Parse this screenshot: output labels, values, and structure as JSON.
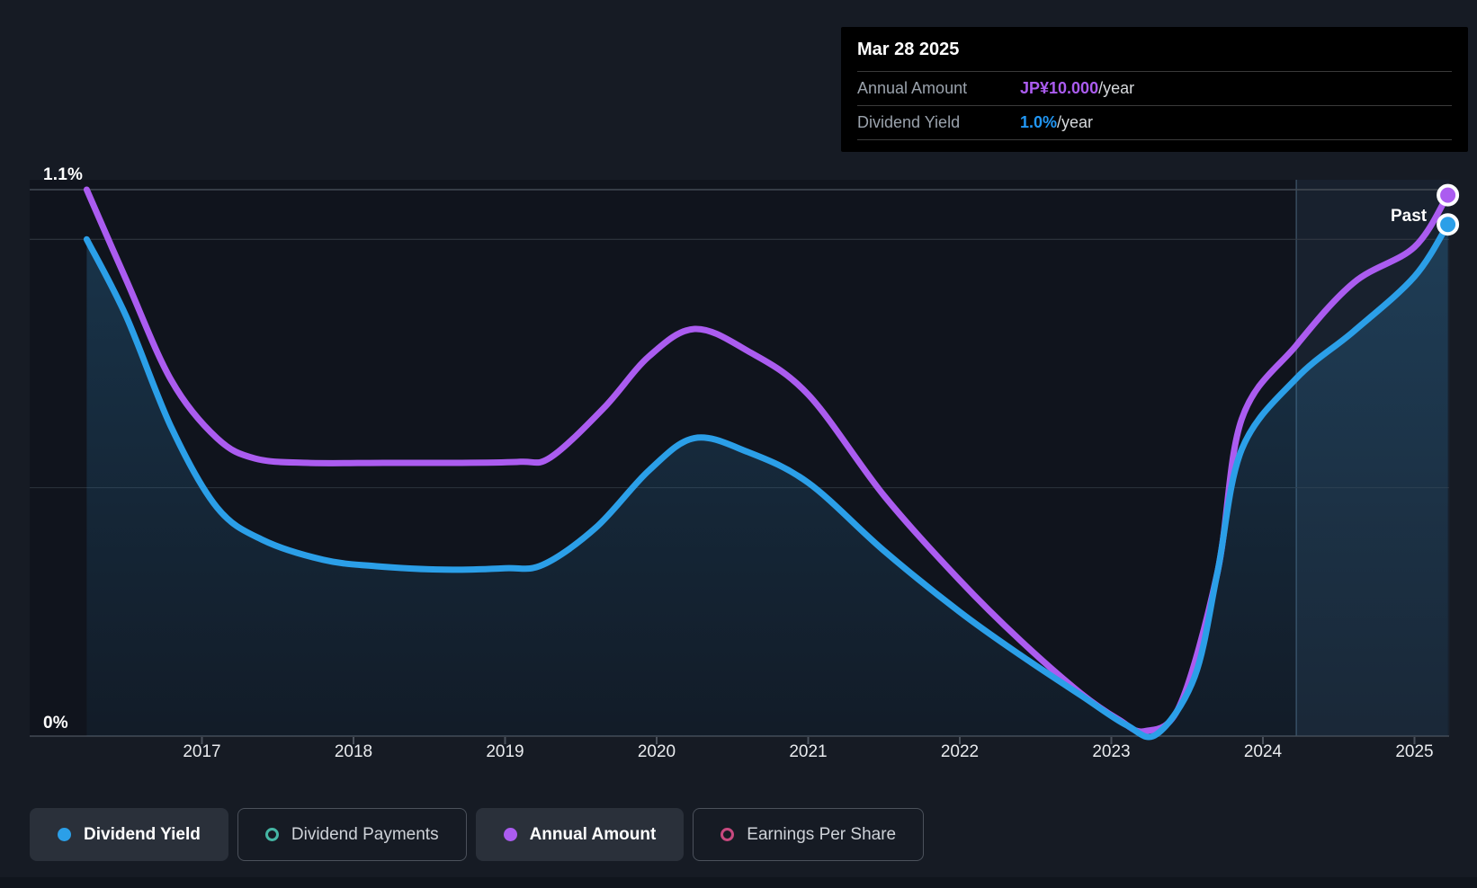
{
  "tooltip": {
    "date": "Mar 28 2025",
    "rows": [
      {
        "label": "Annual Amount",
        "value": "JP¥10.000",
        "suffix": "/year",
        "color": "#ab5cf0"
      },
      {
        "label": "Dividend Yield",
        "value": "1.0%",
        "suffix": "/year",
        "color": "#2196f3"
      }
    ]
  },
  "chart_data": {
    "type": "line",
    "x_tick_labels": [
      "2017",
      "2018",
      "2019",
      "2020",
      "2021",
      "2022",
      "2023",
      "2024",
      "2025"
    ],
    "y_axis_labels": {
      "top": "1.1%",
      "bottom": "0%"
    },
    "past_label": "Past",
    "x_range_years": [
      2016.24,
      2025.23
    ],
    "y_gridline_values_pct": [
      1.1,
      1.0,
      0.5,
      0
    ],
    "highlight_region_years": [
      2024.22,
      2025.23
    ],
    "grid_on": true,
    "legend_position": "bottom-left",
    "series": [
      {
        "name": "Dividend Yield",
        "unit": "%",
        "axis_max": 1.1,
        "color": "#2b9fe8",
        "area_fill": true,
        "end_marker": true,
        "points": [
          [
            2016.24,
            1.0
          ],
          [
            2016.5,
            0.845
          ],
          [
            2016.8,
            0.62
          ],
          [
            2017.1,
            0.46
          ],
          [
            2017.4,
            0.395
          ],
          [
            2017.8,
            0.355
          ],
          [
            2018.15,
            0.342
          ],
          [
            2018.6,
            0.335
          ],
          [
            2019.0,
            0.338
          ],
          [
            2019.25,
            0.345
          ],
          [
            2019.6,
            0.42
          ],
          [
            2019.95,
            0.535
          ],
          [
            2020.25,
            0.6
          ],
          [
            2020.6,
            0.572
          ],
          [
            2021.0,
            0.51
          ],
          [
            2021.5,
            0.373
          ],
          [
            2022.0,
            0.25
          ],
          [
            2022.4,
            0.163
          ],
          [
            2022.8,
            0.082
          ],
          [
            2023.1,
            0.022
          ],
          [
            2023.3,
            0.004
          ],
          [
            2023.55,
            0.12
          ],
          [
            2023.7,
            0.33
          ],
          [
            2023.86,
            0.577
          ],
          [
            2024.22,
            0.72
          ],
          [
            2024.6,
            0.815
          ],
          [
            2025.0,
            0.925
          ],
          [
            2025.22,
            1.03
          ]
        ]
      },
      {
        "name": "Annual Amount",
        "unit": "JP¥/year",
        "axis_max": 10,
        "color": "#ab5cf0",
        "area_fill": false,
        "end_marker": true,
        "points": [
          [
            2016.24,
            10.0
          ],
          [
            2016.5,
            8.35
          ],
          [
            2016.8,
            6.5
          ],
          [
            2017.1,
            5.45
          ],
          [
            2017.35,
            5.08
          ],
          [
            2017.7,
            5.0
          ],
          [
            2018.2,
            5.0
          ],
          [
            2018.7,
            5.0
          ],
          [
            2019.1,
            5.02
          ],
          [
            2019.3,
            5.1
          ],
          [
            2019.65,
            6.0
          ],
          [
            2019.95,
            6.95
          ],
          [
            2020.25,
            7.45
          ],
          [
            2020.6,
            7.05
          ],
          [
            2021.0,
            6.25
          ],
          [
            2021.5,
            4.4
          ],
          [
            2022.0,
            2.85
          ],
          [
            2022.4,
            1.75
          ],
          [
            2022.8,
            0.78
          ],
          [
            2023.05,
            0.3
          ],
          [
            2023.22,
            0.09
          ],
          [
            2023.45,
            0.55
          ],
          [
            2023.7,
            3.0
          ],
          [
            2023.86,
            5.8
          ],
          [
            2024.22,
            7.15
          ],
          [
            2024.6,
            8.3
          ],
          [
            2025.0,
            8.95
          ],
          [
            2025.22,
            9.9
          ]
        ]
      }
    ]
  },
  "legend": [
    {
      "label": "Dividend Yield",
      "color": "#2b9fe8",
      "active": true,
      "marker": "filled"
    },
    {
      "label": "Dividend Payments",
      "color": "#45b6a4",
      "active": false,
      "marker": "ring"
    },
    {
      "label": "Annual Amount",
      "color": "#ab5cf0",
      "active": true,
      "marker": "filled"
    },
    {
      "label": "Earnings Per Share",
      "color": "#c8497f",
      "active": false,
      "marker": "ring"
    }
  ],
  "colors": {
    "page_bg": "#161b24",
    "plot_bg": "#10141d",
    "grid_strong": "#434a54",
    "grid_mid": "#343b45",
    "grid_soft": "#2c333d",
    "tick": "#4a515b",
    "highlight_fill": "rgba(100,160,200,0.10)",
    "highlight_edge": "rgba(140,190,225,0.30)",
    "area_fill_base": "#2d7fb4"
  }
}
